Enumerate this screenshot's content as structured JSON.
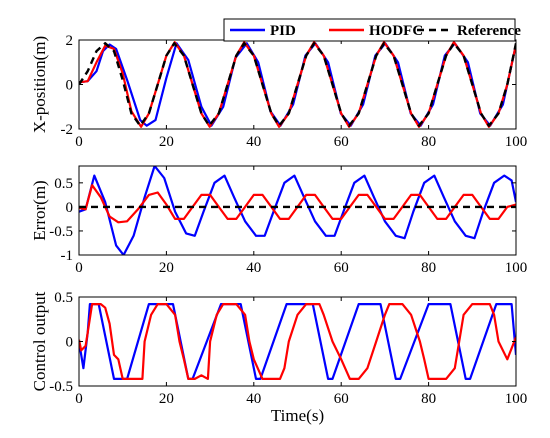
{
  "chart_data": [
    {
      "type": "line",
      "ylabel": "X-position(m)",
      "xlim": [
        0,
        100
      ],
      "ylim": [
        -2,
        2
      ],
      "xticks": [
        "0",
        "20",
        "40",
        "60",
        "80",
        "100"
      ],
      "yticks": [
        "-2",
        "0",
        "2"
      ],
      "legend": {
        "placement": "top-right",
        "orientation": "horizontal"
      },
      "series": [
        {
          "name": "PID",
          "color": "#0000ff",
          "style": "solid",
          "x": [
            0,
            2,
            4,
            5.5,
            7,
            8.5,
            11,
            14,
            15.5,
            17.5,
            20,
            22.3,
            25,
            28,
            30.3,
            33,
            35.8,
            38.4,
            41,
            43.8,
            46.1,
            49,
            51.8,
            54.1,
            57,
            59.9,
            62.2,
            65,
            67.8,
            70.1,
            73,
            75.9,
            78.2,
            81,
            83.7,
            86,
            89,
            91.8,
            94.1,
            97,
            100
          ],
          "y": [
            0.1,
            0.15,
            0.6,
            1.5,
            1.8,
            1.6,
            0.2,
            -1.6,
            -1.85,
            -1.6,
            0.3,
            1.85,
            1.1,
            -1.0,
            -1.85,
            -1.0,
            1.2,
            1.85,
            1.0,
            -1.2,
            -1.85,
            -0.9,
            1.3,
            1.85,
            1.0,
            -1.3,
            -1.85,
            -0.9,
            1.3,
            1.85,
            1.0,
            -1.3,
            -1.85,
            -0.9,
            1.3,
            1.85,
            1.0,
            -1.3,
            -1.85,
            -0.9,
            1.8
          ]
        },
        {
          "name": "HODFC",
          "color": "#ff0000",
          "style": "solid",
          "x": [
            0,
            2,
            4,
            6,
            8,
            10,
            12,
            14.2,
            16,
            18,
            20,
            21.9,
            24,
            26,
            28,
            29.9,
            32,
            34,
            36,
            37.8,
            40,
            42,
            44,
            45.8,
            48,
            50,
            52,
            53.8,
            56,
            58,
            60,
            61.8,
            64,
            66,
            68,
            69.8,
            72,
            74,
            76,
            77.8,
            80,
            82,
            84,
            85.8,
            88,
            90,
            92,
            93.8,
            96,
            98,
            100
          ],
          "y": [
            0.1,
            0.15,
            1.0,
            1.75,
            1.6,
            0.5,
            -1.2,
            -1.9,
            -1.3,
            0.0,
            1.3,
            1.9,
            1.3,
            0.0,
            -1.3,
            -1.9,
            -1.3,
            0.0,
            1.3,
            1.9,
            1.3,
            0.0,
            -1.3,
            -1.9,
            -1.3,
            0.0,
            1.3,
            1.9,
            1.3,
            0.0,
            -1.3,
            -1.9,
            -1.3,
            0.0,
            1.3,
            1.9,
            1.3,
            0.0,
            -1.3,
            -1.9,
            -1.3,
            0.0,
            1.3,
            1.9,
            1.3,
            0.0,
            -1.3,
            -1.9,
            -1.3,
            0.0,
            1.8
          ]
        },
        {
          "name": "Reference",
          "color": "#000000",
          "style": "dashed",
          "x": [
            0,
            2,
            4,
            6,
            8,
            10,
            12,
            14,
            16,
            18,
            20,
            21.8,
            24,
            26,
            28,
            29.8,
            32,
            34,
            36,
            37.8,
            40,
            42,
            44,
            45.8,
            48,
            50,
            52,
            53.8,
            56,
            58,
            60,
            61.8,
            64,
            66,
            68,
            69.8,
            72,
            74,
            76,
            77.8,
            80,
            82,
            84,
            85.8,
            88,
            90,
            92,
            93.8,
            96,
            98,
            100
          ],
          "y": [
            0.0,
            0.6,
            1.5,
            1.85,
            1.5,
            0.2,
            -1.3,
            -1.85,
            -1.3,
            0.0,
            1.3,
            1.85,
            1.3,
            0.0,
            -1.3,
            -1.85,
            -1.3,
            0.0,
            1.3,
            1.85,
            1.3,
            0.0,
            -1.3,
            -1.85,
            -1.3,
            0.0,
            1.3,
            1.85,
            1.3,
            0.0,
            -1.3,
            -1.85,
            -1.3,
            0.0,
            1.3,
            1.85,
            1.3,
            0.0,
            -1.3,
            -1.85,
            -1.3,
            0.0,
            1.3,
            1.85,
            1.3,
            0.0,
            -1.3,
            -1.85,
            -1.3,
            0.0,
            1.85
          ]
        }
      ]
    },
    {
      "type": "line",
      "ylabel": "Error(m)",
      "xlim": [
        0,
        100
      ],
      "ylim": [
        -1,
        0.85
      ],
      "xticks": [
        "0",
        "20",
        "40",
        "60",
        "80",
        "100"
      ],
      "yticks": [
        "-1",
        "-0.5",
        "0",
        "0.5"
      ],
      "series": [
        {
          "name": "PID",
          "color": "#0000ff",
          "style": "solid",
          "x": [
            0,
            1.5,
            3.5,
            6,
            8.5,
            10.2,
            12.5,
            15,
            17.3,
            19.5,
            22,
            24.5,
            26.5,
            28.5,
            31,
            33.3,
            35.5,
            38,
            40.5,
            42.5,
            44.5,
            47,
            49.3,
            51.5,
            54,
            56.5,
            58.5,
            60.5,
            63,
            65.3,
            67.5,
            70,
            72.5,
            74.5,
            76.5,
            79,
            81.3,
            83.5,
            86,
            88.5,
            90.5,
            92.5,
            95,
            97.3,
            99,
            100
          ],
          "y": [
            -0.1,
            -0.05,
            0.65,
            0.1,
            -0.8,
            -1.0,
            -0.6,
            0.2,
            0.85,
            0.6,
            -0.1,
            -0.55,
            -0.6,
            -0.1,
            0.5,
            0.65,
            0.2,
            -0.3,
            -0.6,
            -0.6,
            -0.1,
            0.5,
            0.65,
            0.2,
            -0.3,
            -0.6,
            -0.6,
            -0.1,
            0.5,
            0.65,
            0.2,
            -0.3,
            -0.6,
            -0.65,
            -0.1,
            0.5,
            0.65,
            0.2,
            -0.3,
            -0.6,
            -0.65,
            -0.1,
            0.5,
            0.65,
            0.55,
            0.1
          ]
        },
        {
          "name": "HODFC",
          "color": "#ff0000",
          "style": "solid",
          "x": [
            0,
            1.5,
            3,
            5,
            7,
            9,
            11,
            13.5,
            16,
            18,
            20,
            22,
            24,
            26,
            28,
            30,
            32,
            34,
            36,
            38,
            40,
            42,
            44,
            46,
            48,
            50,
            52,
            54,
            56,
            58,
            60,
            62,
            64,
            66,
            68,
            70,
            72,
            74,
            76,
            78,
            80,
            82,
            84,
            86,
            88,
            90,
            92,
            94,
            96,
            98,
            100
          ],
          "y": [
            -0.02,
            -0.05,
            0.45,
            0.2,
            -0.2,
            -0.32,
            -0.3,
            -0.05,
            0.25,
            0.3,
            0.05,
            -0.25,
            -0.25,
            0.0,
            0.25,
            0.25,
            0.0,
            -0.25,
            -0.25,
            0.0,
            0.25,
            0.25,
            0.0,
            -0.25,
            -0.25,
            0.0,
            0.25,
            0.25,
            0.0,
            -0.25,
            -0.25,
            0.0,
            0.25,
            0.25,
            0.0,
            -0.25,
            -0.25,
            0.0,
            0.25,
            0.25,
            0.0,
            -0.25,
            -0.25,
            0.0,
            0.25,
            0.25,
            0.0,
            -0.25,
            -0.25,
            0.0,
            0.05
          ]
        },
        {
          "name": "Reference",
          "color": "#000000",
          "style": "dashed",
          "x": [
            0,
            100
          ],
          "y": [
            0,
            0
          ]
        }
      ]
    },
    {
      "type": "line",
      "ylabel": "Control output",
      "xlabel": "Time(s)",
      "xlim": [
        0,
        100
      ],
      "ylim": [
        -0.5,
        0.5
      ],
      "xticks": [
        "0",
        "20",
        "40",
        "60",
        "80",
        "100"
      ],
      "yticks": [
        "-0.5",
        "0",
        "0.5"
      ],
      "series": [
        {
          "name": "PID",
          "color": "#0000ff",
          "style": "solid",
          "x": [
            0,
            1,
            2,
            2.5,
            3.5,
            4.5,
            8,
            9,
            11,
            16,
            17.5,
            21.5,
            25,
            26,
            32.5,
            33.5,
            37,
            40.5,
            41.5,
            47.5,
            48.5,
            53.5,
            57,
            58,
            64,
            65,
            69,
            72.5,
            73.5,
            80,
            81,
            85,
            88.5,
            89.5,
            95.5,
            96.5,
            99,
            100
          ],
          "y": [
            0.0,
            -0.3,
            0.1,
            0.42,
            0.42,
            0.42,
            -0.42,
            -0.42,
            -0.42,
            0.42,
            0.42,
            0.42,
            -0.42,
            -0.42,
            0.42,
            0.42,
            0.42,
            -0.42,
            -0.42,
            0.42,
            0.42,
            0.42,
            -0.42,
            -0.42,
            0.42,
            0.42,
            0.42,
            -0.42,
            -0.42,
            0.42,
            0.42,
            0.42,
            -0.42,
            -0.42,
            0.42,
            0.42,
            0.42,
            -0.15
          ]
        },
        {
          "name": "HODFC",
          "color": "#ff0000",
          "style": "solid",
          "x": [
            0,
            0.5,
            1.5,
            2,
            3,
            4,
            5,
            6,
            7,
            8,
            9,
            10,
            11.5,
            13,
            14.5,
            15,
            16.5,
            18,
            19,
            20,
            22,
            23,
            24,
            25,
            26.5,
            28,
            29.5,
            30,
            31.5,
            33,
            34,
            36,
            38,
            39,
            40,
            42,
            44,
            46,
            47,
            48,
            50,
            52,
            54,
            55,
            56,
            58,
            60,
            62,
            63,
            64,
            66,
            68,
            70,
            71,
            72,
            74,
            76,
            78,
            79,
            80,
            82,
            84,
            86,
            87,
            88,
            90,
            92,
            94,
            95,
            96,
            98,
            100
          ],
          "y": [
            0.02,
            -0.1,
            -0.05,
            0.1,
            0.42,
            0.42,
            0.42,
            0.38,
            0.2,
            -0.15,
            -0.2,
            -0.42,
            -0.42,
            -0.42,
            -0.42,
            0.0,
            0.3,
            0.42,
            0.42,
            0.42,
            0.3,
            0.0,
            -0.2,
            -0.42,
            -0.42,
            -0.38,
            -0.42,
            0.0,
            0.3,
            0.42,
            0.42,
            0.42,
            0.3,
            0.0,
            -0.2,
            -0.42,
            -0.42,
            -0.42,
            -0.3,
            0.0,
            0.3,
            0.42,
            0.42,
            0.42,
            0.3,
            0.0,
            -0.2,
            -0.42,
            -0.42,
            -0.42,
            -0.3,
            0.0,
            0.3,
            0.42,
            0.42,
            0.42,
            0.3,
            0.0,
            -0.2,
            -0.42,
            -0.42,
            -0.42,
            -0.3,
            0.0,
            0.3,
            0.42,
            0.42,
            0.42,
            0.3,
            0.0,
            -0.2,
            0.05
          ]
        }
      ]
    }
  ]
}
